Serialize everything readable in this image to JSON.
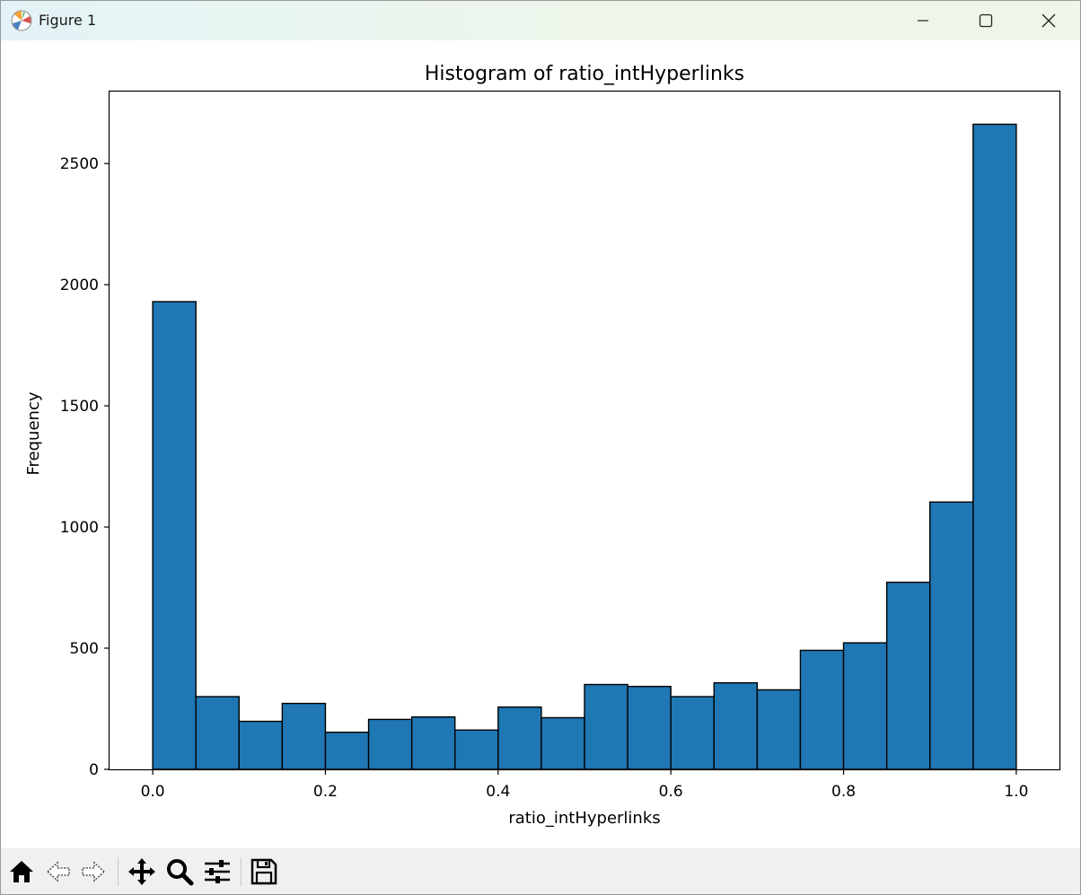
{
  "window": {
    "title": "Figure 1",
    "icons": [
      "app-icon",
      "minimize-icon",
      "maximize-icon",
      "close-icon"
    ]
  },
  "toolbar": {
    "buttons": [
      "home-icon",
      "back-icon",
      "forward-icon",
      "pan-icon",
      "zoom-icon",
      "configure-subplots-icon",
      "save-icon"
    ]
  },
  "colors": {
    "bar_fill": "#1f77b4",
    "bar_edge": "#000000",
    "titlebar": "#e8f4ee",
    "toolbar": "#f0f0f0"
  },
  "chart_data": {
    "type": "bar",
    "title": "Histogram of ratio_intHyperlinks",
    "xlabel": "ratio_intHyperlinks",
    "ylabel": "Frequency",
    "bin_edges": [
      0.0,
      0.05,
      0.1,
      0.15,
      0.2,
      0.25,
      0.3,
      0.35,
      0.4,
      0.45,
      0.5,
      0.55,
      0.6,
      0.65,
      0.7,
      0.75,
      0.8,
      0.85,
      0.9,
      0.95,
      1.0
    ],
    "values": [
      1930,
      300,
      198,
      272,
      153,
      206,
      216,
      162,
      257,
      213,
      350,
      342,
      300,
      357,
      328,
      491,
      522,
      772,
      1103,
      2662
    ],
    "xlim": [
      -0.05,
      1.05
    ],
    "ylim": [
      0,
      2797
    ],
    "xticks": [
      0.0,
      0.2,
      0.4,
      0.6,
      0.8,
      1.0
    ],
    "xtick_labels": [
      "0.0",
      "0.2",
      "0.4",
      "0.6",
      "0.8",
      "1.0"
    ],
    "yticks": [
      0,
      500,
      1000,
      1500,
      2000,
      2500
    ],
    "ytick_labels": [
      "0",
      "500",
      "1000",
      "1500",
      "2000",
      "2500"
    ],
    "grid": false,
    "legend": "none"
  }
}
